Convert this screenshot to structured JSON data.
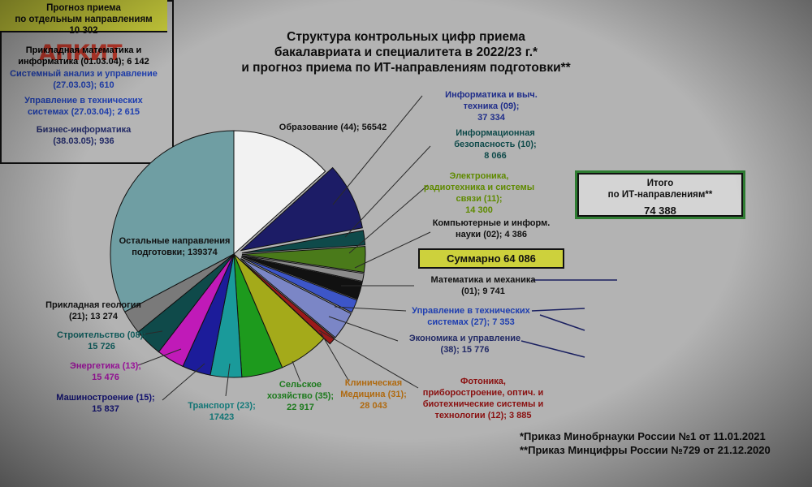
{
  "logo": {
    "text": "АПКИТ"
  },
  "title_lines": [
    "Структура контрольных цифр приема",
    "бакалавриата и специалитета в 2022/23 г.*",
    "и прогноз приема по ИТ-направлениям подготовки**"
  ],
  "chart_data": {
    "type": "pie",
    "slices": [
      {
        "name": "Образование (44)",
        "value": 56542,
        "color": "#f2f2f2",
        "label": [
          "Образование (44); 56542"
        ],
        "label_color": "#111111"
      },
      {
        "name": "Информатика и выч. техника (09)",
        "value": 37334,
        "color": "#1c1c66",
        "label": [
          "Информатика и выч.",
          "техника (09);",
          "37 334"
        ],
        "label_color": "#1f2d8a"
      },
      {
        "name": "Информационная безопасность (10)",
        "value": 8066,
        "color": "#0f4a4a",
        "label": [
          "Информационная",
          "безопасность (10);",
          "8 066"
        ],
        "label_color": "#0f4a4a"
      },
      {
        "name": "Электроника, радиотехника и системы связи (11)",
        "value": 14300,
        "color": "#4a7a1a",
        "label": [
          "Электроника,",
          "радиотехника и системы",
          "связи (11);",
          "14 300"
        ],
        "label_color": "#5f8a00"
      },
      {
        "name": "Компьютерные и информ. науки (02)",
        "value": 4386,
        "color": "#8c8c8c",
        "label": [
          "Компьютерные  и информ.",
          "науки (02);   4 386"
        ],
        "label_color": "#111111"
      },
      {
        "name": "Математика и механика (01)",
        "value": 9741,
        "color": "#111111",
        "label": [
          "Математика и механика",
          "(01); 9 741"
        ],
        "label_color": "#111111"
      },
      {
        "name": "Управление в технических системах (27)",
        "value": 7353,
        "color": "#3d56c8",
        "label": [
          "Управление в технических",
          "системах (27); 7 353"
        ],
        "label_color": "#1f3fb0"
      },
      {
        "name": "Экономика и управление (38)",
        "value": 15776,
        "color": "#7b86c6",
        "label": [
          "Экономика и управление",
          "(38); 15 776"
        ],
        "label_color": "#222a66"
      },
      {
        "name": "Фотоника, приборостроение, оптич. и биотехнические системы и технологии (12)",
        "value": 3885,
        "color": "#9a1a1a",
        "label": [
          "Фотоника,",
          "приборостроение,  оптич. и",
          "биотехнические системы и",
          "технологии (12); 3 885"
        ],
        "label_color": "#8a1010"
      },
      {
        "name": "Клиническая Медицина (31)",
        "value": 28043,
        "color": "#a4aa1a",
        "label": [
          "Клиническая",
          "Медицина (31);",
          "28 043"
        ],
        "label_color": "#b06a10"
      },
      {
        "name": "Сельское хозяйство (35)",
        "value": 22917,
        "color": "#1d9a1d",
        "label": [
          "Сельское",
          "хозяйство (35);",
          "22 917"
        ],
        "label_color": "#1d7a1d"
      },
      {
        "name": "Транспорт (23)",
        "value": 17423,
        "color": "#1a9a9a",
        "label": [
          "Транспорт (23);",
          "17423"
        ],
        "label_color": "#137a7a"
      },
      {
        "name": "Машиностроение (15)",
        "value": 15837,
        "color": "#1c1c9a",
        "label": [
          "Машиностроение (15);",
          "15 837"
        ],
        "label_color": "#15157a"
      },
      {
        "name": "Энергетика (13)",
        "value": 15476,
        "color": "#c01ab8",
        "label": [
          "Энергетика (13);",
          "15 476"
        ],
        "label_color": "#a012a0"
      },
      {
        "name": "Строительство (08)",
        "value": 15726,
        "color": "#0f4a4a",
        "label": [
          "Строительство (08);",
          "15 726"
        ],
        "label_color": "#0f5a5a"
      },
      {
        "name": "Прикладная геология (21)",
        "value": 13274,
        "color": "#7a7a7a",
        "label": [
          "Прикладная  геология",
          "(21); 13 274"
        ],
        "label_color": "#111111"
      },
      {
        "name": "Остальные направления подготовки",
        "value": 139374,
        "color": "#6f9ea3",
        "label": [
          "Остальные направления",
          "подготовки; 139374"
        ],
        "label_color": "#111111"
      }
    ]
  },
  "total_box": {
    "line1": "Итого",
    "line2": "по ИТ-направлениям**",
    "value": "74 388"
  },
  "summary_box": {
    "text": "Суммарно 64 086"
  },
  "forecast": {
    "header": [
      "Прогноз приема",
      "по отдельным направлениям",
      "10 302"
    ],
    "items": [
      {
        "lines": [
          "Прикладная математика и",
          "информатика (01.03.04); 6 142"
        ],
        "color": "#111111"
      },
      {
        "lines": [
          "Системный анализ и управление",
          "(27.03.03); 610"
        ],
        "color": "#1f3fb0"
      },
      {
        "lines": [
          "Управление в технических",
          "системах (27.03.04); 2 615"
        ],
        "color": "#1f3fb0"
      },
      {
        "lines": [
          "Бизнес-информатика",
          "(38.03.05); 936"
        ],
        "color": "#222a66"
      }
    ]
  },
  "footnotes": [
    "*Приказ Минобрнауки России №1 от 11.01.2021",
    "**Приказ Минцифры России №729 от 21.12.2020"
  ]
}
